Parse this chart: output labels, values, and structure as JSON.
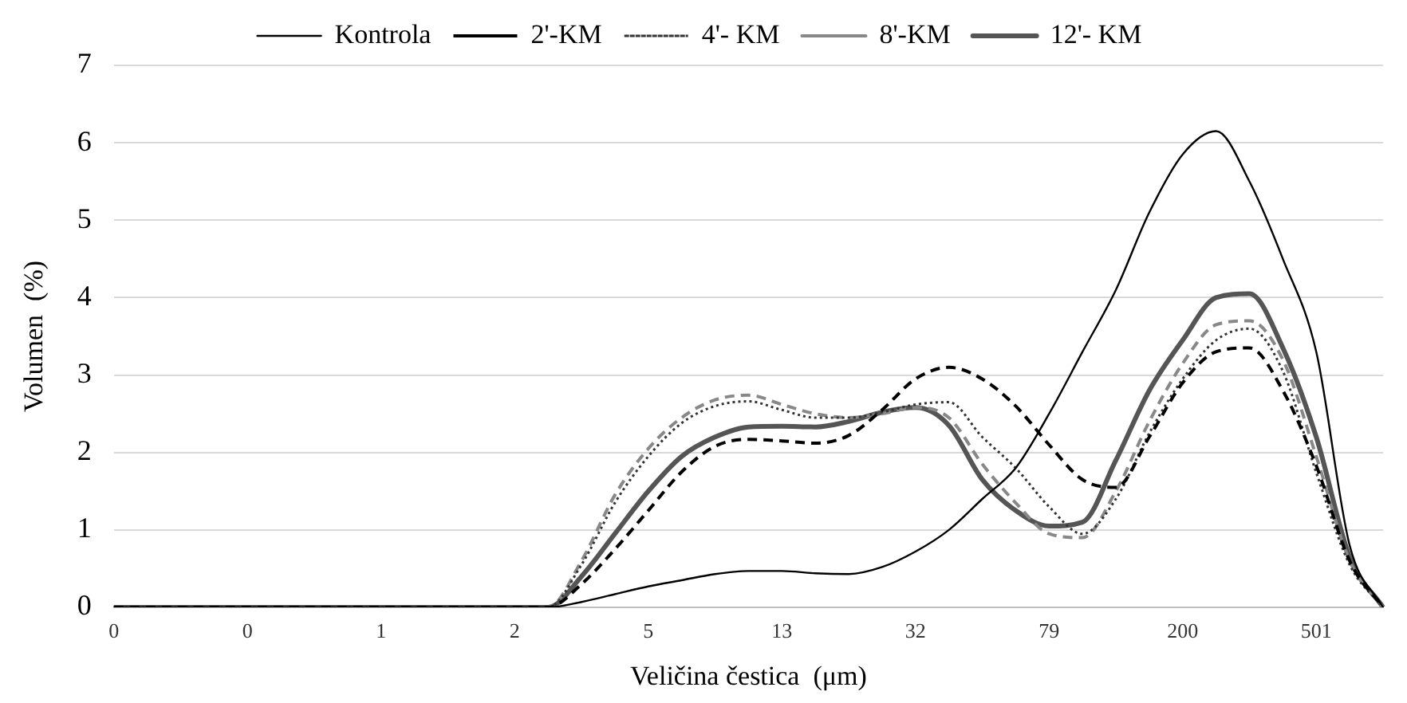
{
  "chart_data": {
    "type": "line",
    "xlabel": "Veličina čestica  (μm)",
    "ylabel": "Volumen  (%)",
    "categories": [
      "0",
      null,
      null,
      null,
      "0",
      null,
      null,
      null,
      "1",
      null,
      null,
      null,
      "2",
      null,
      null,
      null,
      "5",
      null,
      null,
      null,
      "13",
      null,
      null,
      null,
      "32",
      null,
      null,
      null,
      "79",
      null,
      null,
      null,
      "200",
      null,
      null,
      null,
      "501",
      null,
      null
    ],
    "series": [
      {
        "name": "Kontrola",
        "color": "#000000",
        "line_style": "solid",
        "values": [
          0,
          0,
          0,
          0,
          0,
          0,
          0,
          0,
          0,
          0,
          0,
          0,
          0,
          0,
          0.07,
          0.17,
          0.27,
          0.35,
          0.43,
          0.47,
          0.47,
          0.44,
          0.43,
          0.52,
          0.72,
          1.0,
          1.4,
          1.8,
          2.5,
          3.3,
          4.1,
          5.1,
          5.85,
          6.15,
          5.5,
          4.5,
          3.3,
          0.8,
          0
        ]
      },
      {
        "name": "2'-KM",
        "color": "#000000",
        "line_style": "dashed",
        "values": [
          0,
          0,
          0,
          0,
          0,
          0,
          0,
          0,
          0,
          0,
          0,
          0,
          0,
          0,
          0.3,
          0.75,
          1.25,
          1.75,
          2.08,
          2.17,
          2.15,
          2.12,
          2.22,
          2.55,
          2.95,
          3.1,
          2.95,
          2.6,
          2.1,
          1.65,
          1.55,
          2.2,
          2.9,
          3.3,
          3.35,
          2.8,
          1.83,
          0.6,
          0
        ]
      },
      {
        "name": "4'- KM",
        "color": "#333333",
        "line_style": "dotted",
        "values": [
          0,
          0,
          0,
          0,
          0,
          0,
          0,
          0,
          0,
          0,
          0,
          0,
          0,
          0,
          0.55,
          1.35,
          1.95,
          2.38,
          2.6,
          2.66,
          2.55,
          2.45,
          2.45,
          2.52,
          2.62,
          2.65,
          2.2,
          1.8,
          1.3,
          0.95,
          1.4,
          2.25,
          2.95,
          3.45,
          3.6,
          3.05,
          1.74,
          0.55,
          0
        ]
      },
      {
        "name": "8'-KM",
        "color": "#888888",
        "line_style": "dashed",
        "values": [
          0,
          0,
          0,
          0,
          0,
          0,
          0,
          0,
          0,
          0,
          0,
          0,
          0,
          0,
          0.6,
          1.45,
          2.05,
          2.45,
          2.68,
          2.74,
          2.62,
          2.5,
          2.45,
          2.5,
          2.58,
          2.45,
          1.85,
          1.35,
          0.95,
          0.9,
          1.5,
          2.4,
          3.15,
          3.65,
          3.7,
          3.2,
          1.95,
          0.6,
          0
        ]
      },
      {
        "name": "12'- KM",
        "color": "#555555",
        "line_style": "solid",
        "values": [
          0,
          0,
          0,
          0,
          0,
          0,
          0,
          0,
          0,
          0,
          0,
          0,
          0,
          0,
          0.4,
          0.95,
          1.5,
          1.95,
          2.2,
          2.33,
          2.34,
          2.33,
          2.4,
          2.52,
          2.58,
          2.35,
          1.65,
          1.25,
          1.05,
          1.1,
          1.9,
          2.8,
          3.45,
          4.0,
          4.05,
          3.35,
          2.2,
          0.65,
          0
        ]
      }
    ],
    "ylim": [
      0,
      7
    ],
    "yticks": [
      0,
      1,
      2,
      3,
      4,
      5,
      6,
      7
    ],
    "grid": "y",
    "legend": "top"
  }
}
